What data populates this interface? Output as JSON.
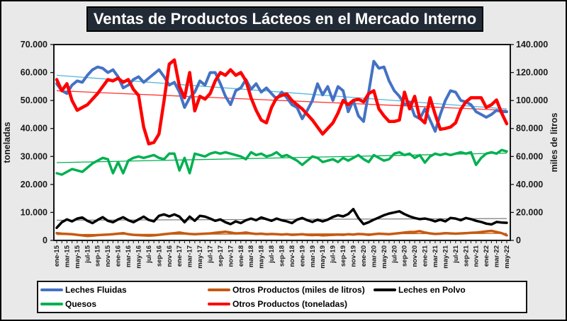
{
  "title": "Ventas de Productos Lácteos en el Mercado Interno",
  "left_axis": {
    "label": "toneladas",
    "ticks": [
      "0",
      "10.000",
      "20.000",
      "30.000",
      "40.000",
      "50.000",
      "60.000",
      "70.000"
    ],
    "max": 70000
  },
  "right_axis": {
    "label": "miles de litros",
    "ticks": [
      "0",
      "20.000",
      "40.000",
      "60.000",
      "80.000",
      "100.000",
      "120.000",
      "140.000"
    ],
    "max": 140000
  },
  "chart_data": {
    "type": "line",
    "x_start": "ene-15",
    "x_end": "may-22",
    "x_freq": "monthly",
    "n_points": 89,
    "x_tick_labels": [
      "ene-15",
      "mar-15",
      "may-15",
      "jul-15",
      "sep-15",
      "nov-15",
      "ene-16",
      "mar-16",
      "may-16",
      "jul-16",
      "sep-16",
      "nov-16",
      "ene-17",
      "mar-17",
      "may-17",
      "jul-17",
      "sep-17",
      "nov-17",
      "ene-18",
      "mar-18",
      "may-18",
      "jul-18",
      "sep-18",
      "nov-18",
      "ene-19",
      "mar-19",
      "may-19",
      "jul-19",
      "sep-19",
      "nov-19",
      "ene-20",
      "mar-20",
      "may-20",
      "jul-20",
      "sep-20",
      "nov-20",
      "ene-21",
      "mar-21",
      "may-21",
      "jul-21",
      "sep-21",
      "nov-21",
      "ene-22",
      "mar-22",
      "may-22"
    ],
    "unit_note": "values in thousands; axis units per series",
    "series": [
      {
        "name": "Leches Fluidas",
        "axis": "right",
        "color": "#4472C4",
        "width": 4,
        "trend": {
          "color": "#4FB6DC",
          "start": 118,
          "end": 94
        },
        "values": [
          112,
          107,
          105,
          111,
          114,
          113,
          118,
          122,
          124,
          123,
          120,
          122,
          117,
          109,
          111,
          115,
          117,
          113,
          116,
          119,
          122,
          117,
          111,
          113,
          106,
          95,
          102,
          106,
          114,
          111,
          120,
          120,
          112,
          103,
          97,
          107,
          109,
          115,
          108,
          112,
          106,
          109,
          105,
          101,
          106,
          102,
          97,
          95,
          87,
          93,
          100,
          112,
          104,
          110,
          100,
          110,
          107,
          92,
          100,
          89,
          85,
          106,
          128,
          123,
          124,
          114,
          107,
          103,
          97,
          99,
          89,
          87,
          94,
          86,
          78,
          90,
          100,
          107,
          106,
          100,
          99,
          97,
          92,
          90,
          88,
          90,
          93,
          92,
          92
        ]
      },
      {
        "name": "Otros Productos (miles de litros)",
        "axis": "right",
        "color": "#C55A11",
        "width": 3.5,
        "trend": {
          "color": "#C55A11",
          "start": 4.2,
          "end": 5.0
        },
        "values": [
          5.2,
          4.8,
          4.6,
          4.4,
          4,
          3.6,
          3.2,
          3.4,
          3.8,
          4,
          4.2,
          4.4,
          4.8,
          5.2,
          4.4,
          4,
          3.8,
          3.6,
          3.4,
          3.6,
          4,
          4.4,
          4.8,
          5.2,
          5.6,
          5,
          4.6,
          4.4,
          4.6,
          4.8,
          5,
          5.4,
          5.8,
          6.2,
          5.6,
          5,
          5.2,
          5.6,
          5,
          4.6,
          4.8,
          4.4,
          4.6,
          4.4,
          4.2,
          4.4,
          4,
          4.2,
          4.4,
          4,
          3.8,
          4,
          3.6,
          3.8,
          4,
          4.2,
          4,
          4.4,
          4.2,
          4.6,
          4.4,
          4,
          4.4,
          4.8,
          4.6,
          4.4,
          4.8,
          5.2,
          5.6,
          6,
          6,
          6.6,
          5.6,
          5,
          4.6,
          4.8,
          5.2,
          5,
          4.8,
          5,
          5.2,
          5.4,
          5.6,
          6,
          6.4,
          6.8,
          6,
          5.2,
          3.6
        ]
      },
      {
        "name": "Leches en Polvo",
        "axis": "left",
        "color": "#000000",
        "width": 3.5,
        "trend": {
          "color": "#7F7F7F",
          "start": 7.2,
          "end": 7.8
        },
        "values": [
          4.5,
          6.5,
          7.5,
          6.8,
          7.8,
          8.2,
          7,
          6.2,
          7.3,
          8.3,
          7,
          6.5,
          7.5,
          8.3,
          7.2,
          6.5,
          7.5,
          8.5,
          7.3,
          6.8,
          8.8,
          9.3,
          8.6,
          9.3,
          8.5,
          6.5,
          8.5,
          7,
          8.8,
          8.5,
          7.8,
          7,
          7.5,
          6.5,
          5.8,
          6.8,
          6.2,
          7.2,
          7.8,
          7.2,
          8.2,
          7.6,
          7,
          7.8,
          7.2,
          6.8,
          6.2,
          7.4,
          8,
          7.2,
          6.6,
          7.4,
          6.8,
          7.4,
          8.4,
          9,
          8.6,
          9.4,
          11.2,
          8,
          5.8,
          6.5,
          7.4,
          8.2,
          9,
          9.6,
          10,
          10.4,
          9.4,
          8.6,
          8,
          7.6,
          7.8,
          7.4,
          6.8,
          7.4,
          6.8,
          8,
          7.8,
          7.2,
          8,
          7.6,
          7,
          6.6,
          6,
          5.7,
          6.6,
          6.4,
          6.3
        ]
      },
      {
        "name": "Quesos",
        "axis": "left",
        "color": "#00B050",
        "width": 3.5,
        "trend": {
          "color": "#00B050",
          "start": 27.8,
          "end": 31.2
        },
        "values": [
          24,
          23.5,
          24.5,
          25.5,
          25,
          24.5,
          26,
          27.5,
          28.5,
          29.5,
          29,
          24,
          28,
          24,
          28.5,
          29.5,
          30,
          29.5,
          30,
          30.5,
          29.5,
          29,
          31,
          31,
          25,
          29.5,
          24,
          31,
          30.5,
          30,
          31,
          31.5,
          31,
          31.5,
          31,
          30.5,
          30,
          29,
          31.5,
          30.5,
          31,
          30,
          30.5,
          31.5,
          30,
          30.5,
          29.5,
          28.5,
          27,
          28.5,
          30,
          29.5,
          28,
          28.5,
          29,
          28,
          29.5,
          28.5,
          29.5,
          30.5,
          29,
          28,
          30.5,
          29.5,
          28.5,
          29,
          31,
          31.5,
          30.5,
          31,
          29.5,
          30.5,
          27.8,
          30,
          31,
          30.5,
          31,
          30.5,
          31,
          31.5,
          31,
          31.5,
          27,
          29.5,
          31,
          31.5,
          31,
          32.3,
          31.8
        ]
      },
      {
        "name": "Otros Productos (toneladas)",
        "axis": "left",
        "color": "#FF0000",
        "width": 4.5,
        "trend": {
          "color": "#FF3333",
          "start": 53.5,
          "end": 46.5
        },
        "values": [
          57.5,
          53.5,
          56,
          50,
          46.5,
          47.5,
          48.5,
          50.5,
          52.5,
          55,
          57.5,
          57,
          58,
          56.5,
          57.5,
          54,
          51.8,
          40.5,
          34.5,
          35,
          38,
          50,
          63,
          64.5,
          55,
          51,
          60,
          46.3,
          51.5,
          50.5,
          52.5,
          57,
          60,
          59,
          61,
          59,
          60,
          57,
          51,
          46.5,
          43,
          42,
          47.5,
          51,
          51.8,
          52.3,
          50,
          48.5,
          47,
          45,
          43,
          40.5,
          38,
          40,
          42,
          45.5,
          50,
          48.5,
          50,
          50.5,
          49.5,
          52.5,
          53.5,
          47,
          44.5,
          42.5,
          42.5,
          43,
          53,
          47,
          51.5,
          43.7,
          42,
          51,
          45,
          39.7,
          40,
          40.5,
          42,
          46.8,
          49.5,
          51,
          51,
          51,
          47.5,
          48.5,
          50.2,
          45.5,
          41.7
        ]
      }
    ],
    "legend_rows": [
      [
        "Leches Fluidas",
        "Otros Productos (miles de litros)",
        "Leches en Polvo"
      ],
      [
        "Quesos",
        "Otros Productos (toneladas)"
      ]
    ]
  }
}
